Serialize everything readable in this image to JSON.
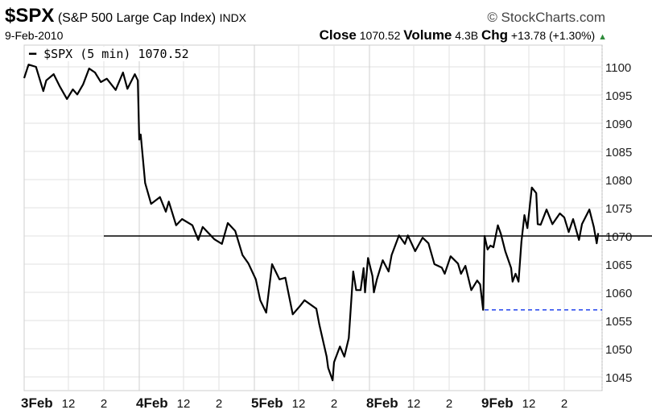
{
  "header": {
    "symbol": "$SPX",
    "name": "(S&P 500 Large Cap Index)",
    "exchange": "INDX",
    "copyright": "© StockCharts.com",
    "date": "9-Feb-2010",
    "close_label": "Close",
    "close": "1070.52",
    "volume_label": "Volume",
    "volume": "4.3B",
    "chg_label": "Chg",
    "chg": "+13.78 (+1.30%)",
    "direction_icon": "triangle-up-icon"
  },
  "legend": {
    "text": "$SPX (5 min) 1070.52"
  },
  "colors": {
    "line": "#000000",
    "grid": "#e2e2e2",
    "dashed_support": "#2244ee",
    "up": "#2e8b3a"
  },
  "chart_data": {
    "type": "line",
    "interval": "5 min",
    "grid": true,
    "ylim": [
      1042,
      1103
    ],
    "yticks": [
      1045,
      1050,
      1055,
      1060,
      1065,
      1070,
      1075,
      1080,
      1085,
      1090,
      1095,
      1100
    ],
    "xticks": [
      {
        "day": "3Feb",
        "t": "09:30",
        "label": "3Feb",
        "bold": true
      },
      {
        "day": "3Feb",
        "t": "12:00",
        "label": "12"
      },
      {
        "day": "3Feb",
        "t": "14:00",
        "label": "2"
      },
      {
        "day": "4Feb",
        "t": "09:30",
        "label": "4Feb",
        "bold": true
      },
      {
        "day": "4Feb",
        "t": "12:00",
        "label": "12"
      },
      {
        "day": "4Feb",
        "t": "14:00",
        "label": "2"
      },
      {
        "day": "5Feb",
        "t": "09:30",
        "label": "5Feb",
        "bold": true
      },
      {
        "day": "5Feb",
        "t": "12:00",
        "label": "12"
      },
      {
        "day": "5Feb",
        "t": "14:00",
        "label": "2"
      },
      {
        "day": "8Feb",
        "t": "09:30",
        "label": "8Feb",
        "bold": true
      },
      {
        "day": "8Feb",
        "t": "12:00",
        "label": "12"
      },
      {
        "day": "8Feb",
        "t": "14:00",
        "label": "2"
      },
      {
        "day": "9Feb",
        "t": "09:30",
        "label": "9Feb",
        "bold": true
      },
      {
        "day": "9Feb",
        "t": "12:00",
        "label": "12"
      },
      {
        "day": "9Feb",
        "t": "14:00",
        "label": "2"
      }
    ],
    "days": [
      "3Feb",
      "4Feb",
      "5Feb",
      "8Feb",
      "9Feb"
    ],
    "reference_line": {
      "value": 1070,
      "from": {
        "day": "3Feb",
        "t": "14:00"
      }
    },
    "support_line": {
      "value": 1056.9,
      "from": {
        "day": "9Feb",
        "t": "09:30"
      },
      "style": "dashed"
    },
    "series": [
      {
        "name": "$SPX",
        "points": [
          [
            "3Feb",
            "09:30",
            1098
          ],
          [
            "3Feb",
            "09:45",
            1100.4
          ],
          [
            "3Feb",
            "10:10",
            1100
          ],
          [
            "3Feb",
            "10:35",
            1095.7
          ],
          [
            "3Feb",
            "10:45",
            1097.6
          ],
          [
            "3Feb",
            "11:10",
            1098.7
          ],
          [
            "3Feb",
            "11:30",
            1096.6
          ],
          [
            "3Feb",
            "11:55",
            1094.3
          ],
          [
            "3Feb",
            "12:15",
            1096
          ],
          [
            "3Feb",
            "12:30",
            1095.1
          ],
          [
            "3Feb",
            "12:50",
            1096.9
          ],
          [
            "3Feb",
            "13:10",
            1099.7
          ],
          [
            "3Feb",
            "13:30",
            1099
          ],
          [
            "3Feb",
            "13:50",
            1097.3
          ],
          [
            "3Feb",
            "14:10",
            1097.9
          ],
          [
            "3Feb",
            "14:40",
            1095.9
          ],
          [
            "3Feb",
            "15:05",
            1099
          ],
          [
            "3Feb",
            "15:20",
            1096.1
          ],
          [
            "3Feb",
            "15:45",
            1098.7
          ],
          [
            "3Feb",
            "15:55",
            1097.6
          ],
          [
            "4Feb",
            "09:30",
            1087.1
          ],
          [
            "4Feb",
            "09:35",
            1088
          ],
          [
            "4Feb",
            "09:50",
            1079.4
          ],
          [
            "4Feb",
            "10:10",
            1075.7
          ],
          [
            "4Feb",
            "10:40",
            1076.9
          ],
          [
            "4Feb",
            "11:00",
            1074.3
          ],
          [
            "4Feb",
            "11:10",
            1076.1
          ],
          [
            "4Feb",
            "11:35",
            1071.9
          ],
          [
            "4Feb",
            "11:55",
            1073
          ],
          [
            "4Feb",
            "12:30",
            1071.9
          ],
          [
            "4Feb",
            "12:50",
            1069.3
          ],
          [
            "4Feb",
            "13:05",
            1071.6
          ],
          [
            "4Feb",
            "13:45",
            1069.4
          ],
          [
            "4Feb",
            "14:10",
            1068.6
          ],
          [
            "4Feb",
            "14:30",
            1072.3
          ],
          [
            "4Feb",
            "14:55",
            1070.9
          ],
          [
            "4Feb",
            "15:20",
            1066.6
          ],
          [
            "4Feb",
            "15:40",
            1065.1
          ],
          [
            "5Feb",
            "09:35",
            1062.3
          ],
          [
            "5Feb",
            "09:50",
            1058.6
          ],
          [
            "5Feb",
            "10:10",
            1056.4
          ],
          [
            "5Feb",
            "10:30",
            1065
          ],
          [
            "5Feb",
            "10:55",
            1062.3
          ],
          [
            "5Feb",
            "11:15",
            1062.6
          ],
          [
            "5Feb",
            "11:40",
            1056.1
          ],
          [
            "5Feb",
            "12:05",
            1057.6
          ],
          [
            "5Feb",
            "12:20",
            1058.6
          ],
          [
            "5Feb",
            "13:00",
            1057.1
          ],
          [
            "5Feb",
            "13:10",
            1054.3
          ],
          [
            "5Feb",
            "13:35",
            1048.6
          ],
          [
            "5Feb",
            "13:40",
            1046.6
          ],
          [
            "5Feb",
            "13:55",
            1044.4
          ],
          [
            "5Feb",
            "14:00",
            1047.6
          ],
          [
            "5Feb",
            "14:20",
            1050.4
          ],
          [
            "5Feb",
            "14:35",
            1048.6
          ],
          [
            "5Feb",
            "14:50",
            1051.9
          ],
          [
            "5Feb",
            "15:05",
            1063.7
          ],
          [
            "5Feb",
            "15:15",
            1060.4
          ],
          [
            "5Feb",
            "15:30",
            1060.4
          ],
          [
            "5Feb",
            "15:40",
            1064.3
          ],
          [
            "5Feb",
            "15:45",
            1060
          ],
          [
            "5Feb",
            "15:55",
            1066.1
          ],
          [
            "8Feb",
            "09:40",
            1062.9
          ],
          [
            "8Feb",
            "09:45",
            1060
          ],
          [
            "8Feb",
            "09:55",
            1062.3
          ],
          [
            "8Feb",
            "10:15",
            1065.7
          ],
          [
            "8Feb",
            "10:35",
            1063.7
          ],
          [
            "8Feb",
            "10:45",
            1066.6
          ],
          [
            "8Feb",
            "11:10",
            1070.1
          ],
          [
            "8Feb",
            "11:30",
            1068.6
          ],
          [
            "8Feb",
            "11:40",
            1070.1
          ],
          [
            "8Feb",
            "12:05",
            1067.3
          ],
          [
            "8Feb",
            "12:30",
            1069.7
          ],
          [
            "8Feb",
            "12:50",
            1068.7
          ],
          [
            "8Feb",
            "13:10",
            1065
          ],
          [
            "8Feb",
            "13:35",
            1064.4
          ],
          [
            "8Feb",
            "13:45",
            1063.3
          ],
          [
            "8Feb",
            "14:05",
            1066.4
          ],
          [
            "8Feb",
            "14:30",
            1065.1
          ],
          [
            "8Feb",
            "14:40",
            1063.3
          ],
          [
            "8Feb",
            "14:55",
            1064.7
          ],
          [
            "8Feb",
            "15:15",
            1060.4
          ],
          [
            "8Feb",
            "15:35",
            1062.1
          ],
          [
            "8Feb",
            "15:45",
            1061.4
          ],
          [
            "8Feb",
            "15:55",
            1056.9
          ],
          [
            "9Feb",
            "09:30",
            1070
          ],
          [
            "9Feb",
            "09:40",
            1067.6
          ],
          [
            "9Feb",
            "09:50",
            1068.3
          ],
          [
            "9Feb",
            "10:00",
            1068
          ],
          [
            "9Feb",
            "10:15",
            1071.9
          ],
          [
            "9Feb",
            "10:25",
            1070.4
          ],
          [
            "9Feb",
            "10:40",
            1067.3
          ],
          [
            "9Feb",
            "11:00",
            1064.3
          ],
          [
            "9Feb",
            "11:05",
            1061.9
          ],
          [
            "9Feb",
            "11:15",
            1063.3
          ],
          [
            "9Feb",
            "11:25",
            1061.9
          ],
          [
            "9Feb",
            "11:35",
            1069
          ],
          [
            "9Feb",
            "11:45",
            1073.7
          ],
          [
            "9Feb",
            "11:55",
            1071.4
          ],
          [
            "9Feb",
            "12:10",
            1078.6
          ],
          [
            "9Feb",
            "12:25",
            1077.6
          ],
          [
            "9Feb",
            "12:30",
            1072.1
          ],
          [
            "9Feb",
            "12:40",
            1072
          ],
          [
            "9Feb",
            "13:00",
            1074.7
          ],
          [
            "9Feb",
            "13:20",
            1072.1
          ],
          [
            "9Feb",
            "13:45",
            1074
          ],
          [
            "9Feb",
            "14:00",
            1073.3
          ],
          [
            "9Feb",
            "14:15",
            1070.7
          ],
          [
            "9Feb",
            "14:30",
            1073
          ],
          [
            "9Feb",
            "14:50",
            1069.3
          ],
          [
            "9Feb",
            "15:00",
            1072.1
          ],
          [
            "9Feb",
            "15:25",
            1074.7
          ],
          [
            "9Feb",
            "15:40",
            1071.6
          ],
          [
            "9Feb",
            "15:50",
            1068.7
          ],
          [
            "9Feb",
            "15:55",
            1070.52
          ]
        ]
      }
    ]
  }
}
